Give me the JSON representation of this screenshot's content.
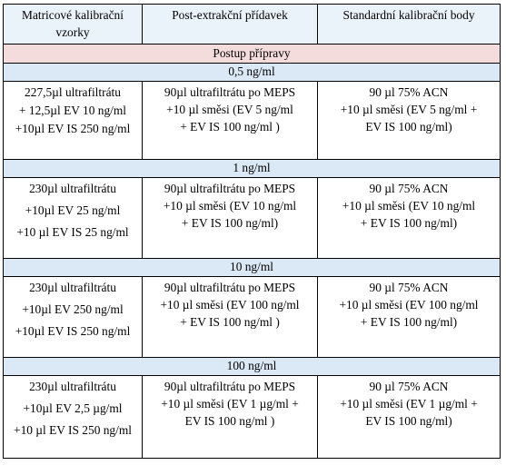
{
  "table": {
    "headers": [
      "Matricové kalibrační vzorky",
      "Post-extrakční přídavek",
      "Standardní kalibrační body"
    ],
    "procedure_title": "Postup přípravy",
    "groups": [
      {
        "concentration": "0,5 ng/ml",
        "col1": [
          "227,5µl ultrafiltrátu",
          "+ 12,5µl EV 10 ng/ml",
          "+10µl EV IS 250 ng/ml"
        ],
        "col2": [
          "90µl ultrafiltrátu po MEPS",
          "+10 µl směsi (EV 5  ng/ml",
          "+ EV IS 100 ng/ml )"
        ],
        "col3": [
          "90 µl 75% ACN",
          "+10 µl směsi (EV 5  ng/ml  +",
          "EV IS 100 ng/ml)"
        ]
      },
      {
        "concentration": "1 ng/ml",
        "col1": [
          "230µl ultrafiltrátu",
          "+10µl EV 25 ng/ml",
          "+10 µl EV IS 25 ng/ml"
        ],
        "col2": [
          "90µl ultrafiltrátu po MEPS",
          "+10 µl směsi (EV 10 ng/ml",
          "+ EV IS 100 ng/ml)"
        ],
        "col3": [
          "90 µl 75% ACN",
          "+10 µl směsi (EV 10 ng/ml",
          "+ EV IS 100 ng/ml)"
        ]
      },
      {
        "concentration": "10 ng/ml",
        "col1": [
          "230µl ultrafiltrátu",
          "+10µl EV 250 ng/ml",
          "+10µl EV IS 250 ng/ml"
        ],
        "col2": [
          "90µl ultrafiltrátu po MEPS",
          "+10 µl směsi (EV 100 ng/ml",
          "+ EV IS 100 ng/ml )"
        ],
        "col3": [
          "90 µl 75% ACN",
          "+10 µl směsi (EV 100 ng/ml",
          "+ EV IS 100 ng/ml)"
        ]
      },
      {
        "concentration": "100 ng/ml",
        "col1": [
          "230µl ultrafiltrátu",
          "+10µl EV 2,5 µg/ml",
          "+10 µl EV IS 250 ng/ml"
        ],
        "col2": [
          "90µl ultrafiltrátu po MEPS",
          "+10 µl směsi (EV 1 µg/ml +",
          "EV IS 100 ng/ml )"
        ],
        "col3": [
          "90 µl 75% ACN",
          "+10 µl směsi (EV 1 µg/ml +",
          "EV IS 100 ng/ml)"
        ]
      }
    ]
  }
}
